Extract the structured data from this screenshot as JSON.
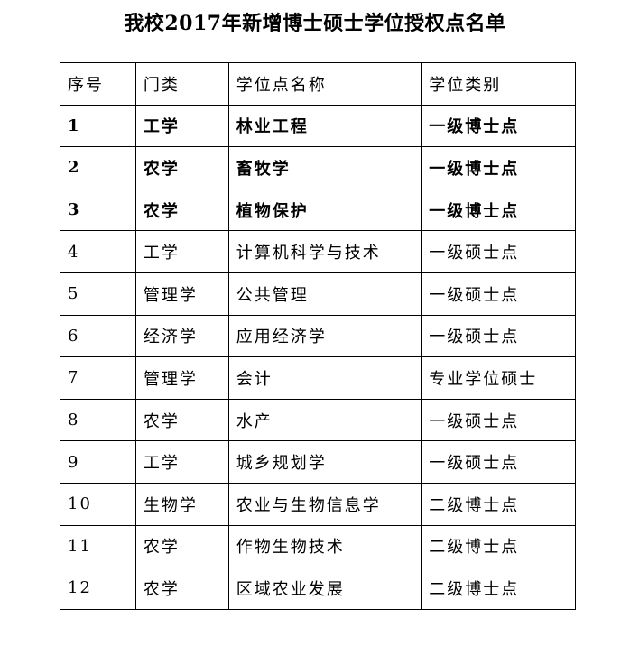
{
  "title": "我校2017年新增博士硕士学位授权点名单",
  "table": {
    "headers": [
      "序号",
      "门类",
      "学位点名称",
      "学位类别"
    ],
    "rows": [
      {
        "no": "1",
        "category": "工学",
        "name": "林业工程",
        "type": "一级博士点",
        "bold": true
      },
      {
        "no": "2",
        "category": "农学",
        "name": "畜牧学",
        "type": "一级博士点",
        "bold": true
      },
      {
        "no": "3",
        "category": "农学",
        "name": "植物保护",
        "type": "一级博士点",
        "bold": true
      },
      {
        "no": "4",
        "category": "工学",
        "name": "计算机科学与技术",
        "type": "一级硕士点",
        "bold": false
      },
      {
        "no": "5",
        "category": "管理学",
        "name": "公共管理",
        "type": "一级硕士点",
        "bold": false
      },
      {
        "no": "6",
        "category": "经济学",
        "name": "应用经济学",
        "type": "一级硕士点",
        "bold": false
      },
      {
        "no": "7",
        "category": "管理学",
        "name": "会计",
        "type": "专业学位硕士",
        "bold": false
      },
      {
        "no": "8",
        "category": "农学",
        "name": "水产",
        "type": "一级硕士点",
        "bold": false
      },
      {
        "no": "9",
        "category": "工学",
        "name": "城乡规划学",
        "type": "一级硕士点",
        "bold": false
      },
      {
        "no": "10",
        "category": "生物学",
        "name": "农业与生物信息学",
        "type": "二级博士点",
        "bold": false
      },
      {
        "no": "11",
        "category": "农学",
        "name": "作物生物技术",
        "type": "二级博士点",
        "bold": false
      },
      {
        "no": "12",
        "category": "农学",
        "name": "区域农业发展",
        "type": "二级博士点",
        "bold": false
      }
    ]
  }
}
